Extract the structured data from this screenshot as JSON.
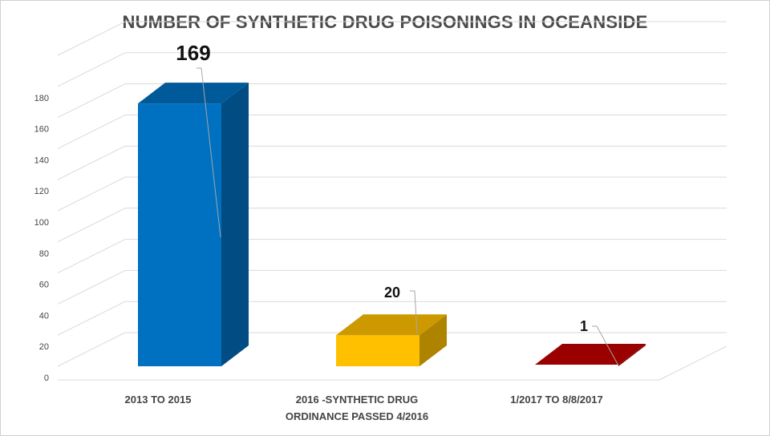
{
  "chart_data": {
    "type": "bar",
    "title": "NUMBER OF SYNTHETIC DRUG POISONINGS IN OCEANSIDE",
    "categories": [
      [
        "2013 TO 2015"
      ],
      [
        "2016 -SYNTHETIC DRUG",
        "ORDINANCE PASSED 4/2016"
      ],
      [
        "1/2017 TO 8/8/2017"
      ]
    ],
    "values": [
      169,
      20,
      1
    ],
    "data_labels": [
      "169",
      "20",
      "1"
    ],
    "colors": [
      "#0070c0",
      "#ffc000",
      "#c00000"
    ],
    "yticks": [
      0,
      20,
      40,
      60,
      80,
      100,
      120,
      140,
      160,
      180
    ],
    "ylim": [
      0,
      200
    ],
    "grid": true,
    "legend": "none",
    "style": "3d-column"
  }
}
